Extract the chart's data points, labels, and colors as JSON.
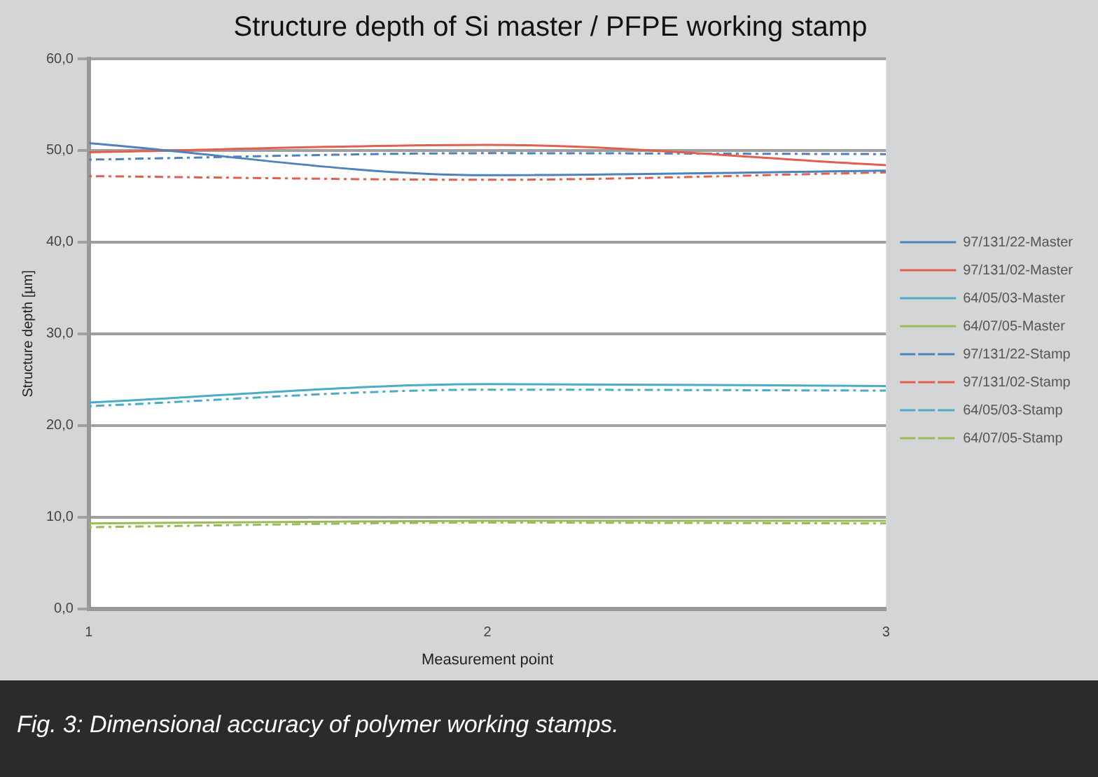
{
  "chart_data": {
    "type": "line",
    "title": "Structure depth of Si master / PFPE working stamp",
    "xlabel": "Measurement point",
    "ylabel": "Structure depth [µm]",
    "x": [
      1,
      2,
      3
    ],
    "xlim": [
      1,
      3
    ],
    "xticks": [
      1,
      2,
      3
    ],
    "ylim": [
      0,
      60
    ],
    "yticks": [
      {
        "value": 0,
        "label": "0,0"
      },
      {
        "value": 10,
        "label": "10,0"
      },
      {
        "value": 20,
        "label": "20,0"
      },
      {
        "value": 30,
        "label": "30,0"
      },
      {
        "value": 40,
        "label": "40,0"
      },
      {
        "value": 50,
        "label": "50,0"
      },
      {
        "value": 60,
        "label": "60,0"
      }
    ],
    "grid": "y",
    "legend": "right",
    "marker": "none",
    "series": [
      {
        "name": "97/131/22-Master",
        "color": "#4f81bd",
        "values": [
          50.8,
          47.3,
          47.8
        ],
        "line_style": "solid"
      },
      {
        "name": "97/131/02-Master",
        "color": "#e06050",
        "values": [
          49.8,
          50.6,
          48.4
        ],
        "line_style": "solid"
      },
      {
        "name": "64/05/03-Master",
        "color": "#4bacc6",
        "values": [
          22.5,
          24.5,
          24.3
        ],
        "line_style": "solid"
      },
      {
        "name": "64/07/05-Master",
        "color": "#9bbb59",
        "values": [
          9.3,
          9.6,
          9.6
        ],
        "line_style": "solid"
      },
      {
        "name": "97/131/22-Stamp",
        "color": "#4f81bd",
        "values": [
          49.0,
          49.7,
          49.6
        ],
        "line_style": "dotted"
      },
      {
        "name": "97/131/02-Stamp",
        "color": "#e06050",
        "values": [
          47.2,
          46.8,
          47.6
        ],
        "line_style": "dotted"
      },
      {
        "name": "64/05/03-Stamp",
        "color": "#4bacc6",
        "values": [
          22.1,
          23.9,
          23.8
        ],
        "line_style": "dotted"
      },
      {
        "name": "64/07/05-Stamp",
        "color": "#9bbb59",
        "values": [
          8.9,
          9.4,
          9.3
        ],
        "line_style": "dotted"
      }
    ],
    "annotations": [
      "Fig. 3:  Dimensional accuracy of polymer working stamps."
    ]
  }
}
